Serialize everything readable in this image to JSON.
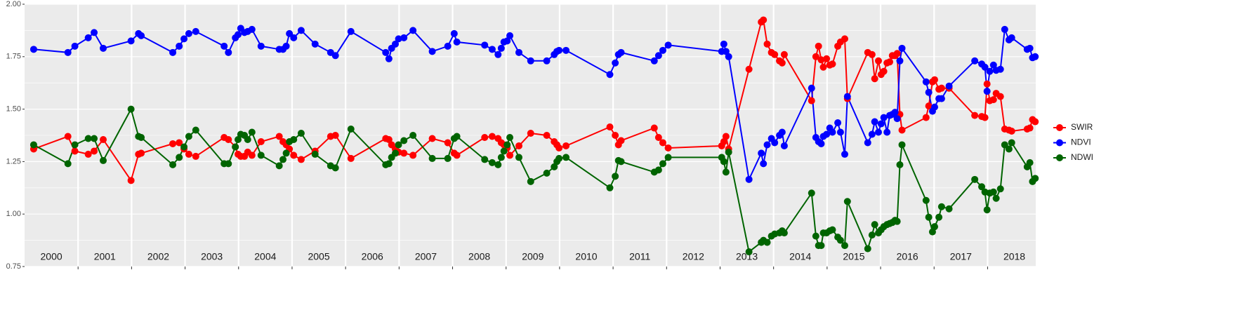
{
  "chart_data": {
    "type": "line",
    "x": [
      2000.17,
      2000.81,
      2000.94,
      2001.19,
      2001.3,
      2001.47,
      2001.99,
      2002.13,
      2002.18,
      2002.77,
      2002.89,
      2002.98,
      2003.07,
      2003.2,
      2003.73,
      2003.81,
      2003.94,
      2003.99,
      2004.04,
      2004.11,
      2004.17,
      2004.25,
      2004.42,
      2004.76,
      2004.83,
      2004.89,
      2004.95,
      2005.03,
      2005.17,
      2005.43,
      2005.72,
      2005.81,
      2006.1,
      2006.75,
      2006.81,
      2006.86,
      2006.93,
      2006.99,
      2007.09,
      2007.26,
      2007.62,
      2007.91,
      2008.03,
      2008.08,
      2008.6,
      2008.74,
      2008.85,
      2008.91,
      2008.96,
      2009.02,
      2009.07,
      2009.24,
      2009.46,
      2009.76,
      2009.9,
      2009.95,
      2009.99,
      2010.12,
      2010.94,
      2011.04,
      2011.1,
      2011.15,
      2011.77,
      2011.85,
      2011.93,
      2012.03,
      2013.03,
      2013.07,
      2013.11,
      2013.16,
      2013.54,
      2013.77,
      2013.81,
      2013.88,
      2013.96,
      2014.02,
      2014.11,
      2014.16,
      2014.2,
      2014.71,
      2014.79,
      2014.84,
      2014.89,
      2014.93,
      2014.99,
      2015.05,
      2015.1,
      2015.2,
      2015.25,
      2015.33,
      2015.38,
      2015.76,
      2015.84,
      2015.89,
      2015.96,
      2016.01,
      2016.06,
      2016.12,
      2016.17,
      2016.22,
      2016.27,
      2016.31,
      2016.36,
      2016.4,
      2016.85,
      2016.9,
      2016.97,
      2017.01,
      2017.09,
      2017.14,
      2017.28,
      2017.76,
      2017.89,
      2017.95,
      2017.99,
      2018.04,
      2018.11,
      2018.16,
      2018.24,
      2018.32,
      2018.4,
      2018.45,
      2018.74,
      2018.79,
      2018.84,
      2018.89
    ],
    "series": [
      {
        "name": "SWIR",
        "color": "#ff0000",
        "values": [
          1.31,
          1.37,
          1.3,
          1.285,
          1.3,
          1.355,
          1.16,
          1.285,
          1.29,
          1.335,
          1.34,
          1.31,
          1.285,
          1.275,
          1.365,
          1.355,
          1.32,
          1.285,
          1.275,
          1.275,
          1.295,
          1.28,
          1.345,
          1.37,
          1.345,
          1.33,
          1.31,
          1.28,
          1.26,
          1.3,
          1.37,
          1.375,
          1.265,
          1.36,
          1.355,
          1.33,
          1.31,
          1.295,
          1.29,
          1.28,
          1.36,
          1.34,
          1.29,
          1.28,
          1.365,
          1.37,
          1.36,
          1.34,
          1.33,
          1.315,
          1.28,
          1.325,
          1.385,
          1.375,
          1.345,
          1.33,
          1.315,
          1.325,
          1.415,
          1.375,
          1.33,
          1.35,
          1.41,
          1.365,
          1.34,
          1.315,
          1.325,
          1.345,
          1.37,
          1.31,
          1.69,
          1.915,
          1.925,
          1.81,
          1.77,
          1.76,
          1.73,
          1.72,
          1.76,
          1.54,
          1.75,
          1.8,
          1.735,
          1.7,
          1.74,
          1.71,
          1.715,
          1.8,
          1.82,
          1.835,
          1.55,
          1.77,
          1.76,
          1.645,
          1.73,
          1.665,
          1.68,
          1.72,
          1.725,
          1.755,
          1.755,
          1.765,
          1.475,
          1.4,
          1.46,
          1.515,
          1.63,
          1.64,
          1.595,
          1.6,
          1.6,
          1.47,
          1.465,
          1.46,
          1.62,
          1.54,
          1.545,
          1.575,
          1.56,
          1.405,
          1.4,
          1.395,
          1.405,
          1.41,
          1.45,
          1.44
        ]
      },
      {
        "name": "NDVI",
        "color": "#0000ff",
        "values": [
          1.785,
          1.77,
          1.8,
          1.84,
          1.865,
          1.79,
          1.825,
          1.86,
          1.85,
          1.77,
          1.8,
          1.835,
          1.86,
          1.87,
          1.8,
          1.77,
          1.84,
          1.855,
          1.885,
          1.865,
          1.87,
          1.88,
          1.8,
          1.785,
          1.785,
          1.8,
          1.86,
          1.84,
          1.875,
          1.81,
          1.77,
          1.755,
          1.87,
          1.77,
          1.74,
          1.79,
          1.81,
          1.835,
          1.84,
          1.875,
          1.775,
          1.8,
          1.86,
          1.82,
          1.805,
          1.785,
          1.76,
          1.79,
          1.82,
          1.825,
          1.85,
          1.77,
          1.73,
          1.73,
          1.76,
          1.775,
          1.78,
          1.78,
          1.665,
          1.72,
          1.76,
          1.77,
          1.73,
          1.755,
          1.78,
          1.805,
          1.775,
          1.81,
          1.775,
          1.75,
          1.165,
          1.29,
          1.24,
          1.33,
          1.36,
          1.34,
          1.375,
          1.39,
          1.325,
          1.6,
          1.365,
          1.345,
          1.335,
          1.37,
          1.38,
          1.41,
          1.39,
          1.435,
          1.39,
          1.285,
          1.56,
          1.34,
          1.38,
          1.44,
          1.39,
          1.43,
          1.46,
          1.39,
          1.47,
          1.475,
          1.485,
          1.455,
          1.73,
          1.79,
          1.63,
          1.58,
          1.49,
          1.51,
          1.55,
          1.55,
          1.61,
          1.73,
          1.715,
          1.7,
          1.585,
          1.68,
          1.71,
          1.685,
          1.69,
          1.88,
          1.83,
          1.84,
          1.785,
          1.79,
          1.745,
          1.75
        ]
      },
      {
        "name": "NDWI",
        "color": "#006400",
        "values": [
          1.33,
          1.24,
          1.33,
          1.36,
          1.36,
          1.255,
          1.5,
          1.37,
          1.365,
          1.235,
          1.27,
          1.32,
          1.37,
          1.4,
          1.24,
          1.24,
          1.32,
          1.355,
          1.38,
          1.375,
          1.355,
          1.39,
          1.28,
          1.23,
          1.26,
          1.29,
          1.345,
          1.355,
          1.385,
          1.285,
          1.23,
          1.22,
          1.405,
          1.235,
          1.24,
          1.27,
          1.29,
          1.33,
          1.35,
          1.375,
          1.265,
          1.265,
          1.36,
          1.37,
          1.26,
          1.245,
          1.235,
          1.27,
          1.3,
          1.33,
          1.365,
          1.27,
          1.155,
          1.195,
          1.225,
          1.25,
          1.265,
          1.27,
          1.125,
          1.18,
          1.255,
          1.25,
          1.2,
          1.21,
          1.24,
          1.27,
          1.27,
          1.25,
          1.2,
          1.295,
          0.82,
          0.865,
          0.875,
          0.865,
          0.895,
          0.905,
          0.91,
          0.92,
          0.91,
          1.1,
          0.895,
          0.85,
          0.85,
          0.91,
          0.91,
          0.92,
          0.925,
          0.89,
          0.875,
          0.85,
          1.06,
          0.835,
          0.9,
          0.95,
          0.91,
          0.925,
          0.94,
          0.95,
          0.955,
          0.96,
          0.97,
          0.965,
          1.235,
          1.33,
          1.065,
          0.985,
          0.915,
          0.94,
          0.985,
          1.035,
          1.025,
          1.165,
          1.13,
          1.105,
          1.02,
          1.1,
          1.105,
          1.075,
          1.12,
          1.33,
          1.31,
          1.34,
          1.225,
          1.245,
          1.155,
          1.17
        ]
      }
    ],
    "xlim": [
      2000,
      2018.9
    ],
    "xticks": [
      2001,
      2002,
      2003,
      2004,
      2005,
      2006,
      2007,
      2008,
      2009,
      2010,
      2011,
      2012,
      2013,
      2014,
      2015,
      2016,
      2017,
      2018
    ],
    "ylim": [
      0.75,
      2.0
    ],
    "yticks": [
      0.75,
      {
        "value": 1.0,
        "label": "1.00"
      },
      1.25,
      {
        "value": 1.5,
        "label": "1.50"
      },
      1.75,
      {
        "value": 2.0,
        "label": "2.00"
      }
    ],
    "year_labels": [
      {
        "value": 2000,
        "label": "2000"
      },
      {
        "value": 2001,
        "label": "2001"
      },
      {
        "value": 2002,
        "label": "2002"
      },
      {
        "value": 2003,
        "label": "2003"
      },
      {
        "value": 2004,
        "label": "2004"
      },
      {
        "value": 2005,
        "label": "2005"
      },
      {
        "value": 2006,
        "label": "2006"
      },
      {
        "value": 2007,
        "label": "2007"
      },
      {
        "value": 2008,
        "label": "2008"
      },
      {
        "value": 2009,
        "label": "2009"
      },
      {
        "value": 2010,
        "label": "2010"
      },
      {
        "value": 2011,
        "label": "2011"
      },
      {
        "value": 2012,
        "label": "2012"
      },
      {
        "value": 2013,
        "label": "2013"
      },
      {
        "value": 2014,
        "label": "2014"
      },
      {
        "value": 2015,
        "label": "2015"
      },
      {
        "value": 2016,
        "label": "2016"
      },
      {
        "value": 2017,
        "label": "2017"
      },
      {
        "value": 2018,
        "label": "2018"
      }
    ],
    "grid": true
  }
}
